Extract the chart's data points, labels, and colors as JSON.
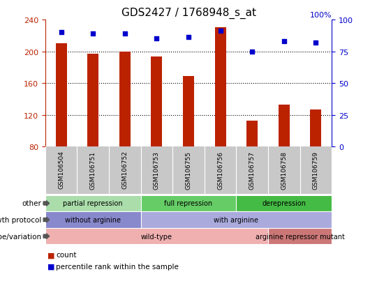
{
  "title": "GDS2427 / 1768948_s_at",
  "samples": [
    "GSM106504",
    "GSM106751",
    "GSM106752",
    "GSM106753",
    "GSM106755",
    "GSM106756",
    "GSM106757",
    "GSM106758",
    "GSM106759"
  ],
  "counts": [
    210,
    197,
    200,
    193,
    169,
    230,
    113,
    133,
    127
  ],
  "percentile_ranks": [
    90,
    89,
    89,
    85,
    86,
    91,
    75,
    83,
    82
  ],
  "ylim_left": [
    80,
    240
  ],
  "ylim_right": [
    0,
    100
  ],
  "yticks_left": [
    80,
    120,
    160,
    200,
    240
  ],
  "yticks_right": [
    0,
    25,
    50,
    75,
    100
  ],
  "right_top_label": "100%",
  "bar_color": "#bb2200",
  "dot_color": "#0000cc",
  "bar_width": 0.35,
  "grid_lines": [
    120,
    160,
    200
  ],
  "xtick_bg_color": "#c8c8c8",
  "groups_other": [
    {
      "label": "partial repression",
      "start": 0,
      "end": 3,
      "color": "#aaddaa"
    },
    {
      "label": "full repression",
      "start": 3,
      "end": 6,
      "color": "#66cc66"
    },
    {
      "label": "derepression",
      "start": 6,
      "end": 9,
      "color": "#44bb44"
    }
  ],
  "groups_growth": [
    {
      "label": "without arginine",
      "start": 0,
      "end": 3,
      "color": "#8888cc"
    },
    {
      "label": "with arginine",
      "start": 3,
      "end": 9,
      "color": "#aaaadd"
    }
  ],
  "groups_genotype": [
    {
      "label": "wild-type",
      "start": 0,
      "end": 7,
      "color": "#f0b0b0"
    },
    {
      "label": "arginine repressor mutant",
      "start": 7,
      "end": 9,
      "color": "#cc7777"
    }
  ],
  "row_labels": [
    "other",
    "growth protocol",
    "genotype/variation"
  ],
  "legend": [
    {
      "label": "count",
      "color": "#bb2200"
    },
    {
      "label": "percentile rank within the sample",
      "color": "#0000cc"
    }
  ]
}
